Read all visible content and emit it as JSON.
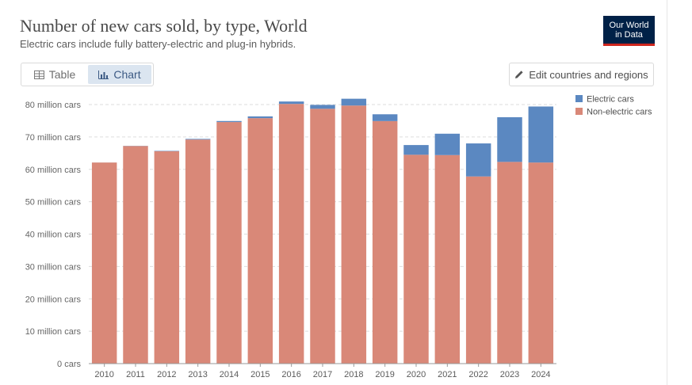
{
  "header": {
    "title": "Number of new cars sold, by type, World",
    "subtitle": "Electric cars include fully battery-electric and plug-in hybrids.",
    "logo_line1": "Our World",
    "logo_line2": "in Data"
  },
  "controls": {
    "tab_table": "Table",
    "tab_chart": "Chart",
    "edit_button": "Edit countries and regions"
  },
  "colors": {
    "electric": "#5b88c1",
    "non_electric": "#d98878"
  },
  "chart_data": {
    "type": "bar",
    "stacked": true,
    "title": "Number of new cars sold, by type, World",
    "xlabel": "",
    "ylabel": "",
    "ylim": [
      0,
      80
    ],
    "y_unit_label": "million cars",
    "yticks": [
      {
        "value": 0,
        "label": "0 cars"
      },
      {
        "value": 10,
        "label": "10 million cars"
      },
      {
        "value": 20,
        "label": "20 million cars"
      },
      {
        "value": 30,
        "label": "30 million cars"
      },
      {
        "value": 40,
        "label": "40 million cars"
      },
      {
        "value": 50,
        "label": "50 million cars"
      },
      {
        "value": 60,
        "label": "60 million cars"
      },
      {
        "value": 70,
        "label": "70 million cars"
      },
      {
        "value": 80,
        "label": "80 million cars"
      }
    ],
    "categories": [
      "2010",
      "2011",
      "2012",
      "2013",
      "2014",
      "2015",
      "2016",
      "2017",
      "2018",
      "2019",
      "2020",
      "2021",
      "2022",
      "2023",
      "2024"
    ],
    "series": [
      {
        "name": "Non-electric cars",
        "values": [
          62.1,
          67.2,
          65.6,
          69.2,
          74.6,
          75.8,
          80.2,
          78.7,
          79.7,
          74.9,
          64.5,
          64.4,
          57.8,
          62.3,
          62.1
        ]
      },
      {
        "name": "Electric cars",
        "values": [
          0.01,
          0.05,
          0.12,
          0.2,
          0.32,
          0.55,
          0.75,
          1.2,
          2.1,
          2.1,
          3.0,
          6.6,
          10.2,
          13.8,
          17.3
        ]
      }
    ],
    "legend": {
      "position": "top-right",
      "entries": [
        "Electric cars",
        "Non-electric cars"
      ]
    },
    "grid": true
  }
}
